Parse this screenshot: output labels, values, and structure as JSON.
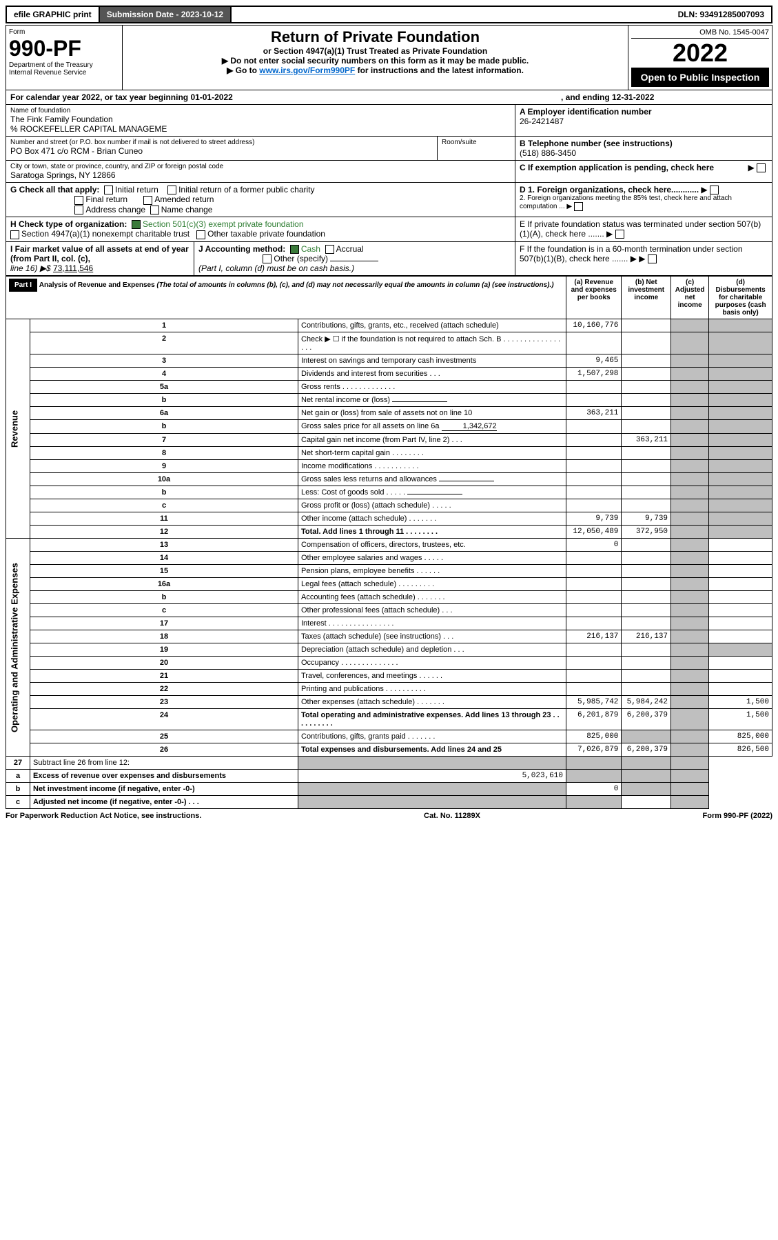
{
  "topbar": {
    "efile": "efile GRAPHIC print",
    "subdate_label": "Submission Date - 2023-10-12",
    "dln": "DLN: 93491285007093"
  },
  "header": {
    "form_word": "Form",
    "form_no": "990-PF",
    "dept": "Department of the Treasury",
    "irs": "Internal Revenue Service",
    "title": "Return of Private Foundation",
    "subtitle": "or Section 4947(a)(1) Trust Treated as Private Foundation",
    "warn1": "▶ Do not enter social security numbers on this form as it may be made public.",
    "warn2_pre": "▶ Go to ",
    "warn2_link": "www.irs.gov/Form990PF",
    "warn2_post": " for instructions and the latest information.",
    "omb": "OMB No. 1545-0047",
    "year": "2022",
    "open": "Open to Public Inspection"
  },
  "cal": {
    "line": "For calendar year 2022, or tax year beginning 01-01-2022",
    "ending": ", and ending 12-31-2022"
  },
  "ident": {
    "name_label": "Name of foundation",
    "name": "The Fink Family Foundation",
    "care": "% ROCKEFELLER CAPITAL MANAGEME",
    "addr_label": "Number and street (or P.O. box number if mail is not delivered to street address)",
    "addr": "PO Box 471 c/o RCM - Brian Cuneo",
    "room_label": "Room/suite",
    "city_label": "City or town, state or province, country, and ZIP or foreign postal code",
    "city": "Saratoga Springs, NY  12866",
    "ein_label": "A Employer identification number",
    "ein": "26-2421487",
    "phone_label": "B Telephone number (see instructions)",
    "phone": "(518) 886-3450",
    "c": "C If exemption application is pending, check here"
  },
  "g": {
    "label": "G Check all that apply:",
    "initial": "Initial return",
    "initial_former": "Initial return of a former public charity",
    "final": "Final return",
    "amended": "Amended return",
    "address": "Address change",
    "namechg": "Name change"
  },
  "h": {
    "label": "H Check type of organization:",
    "sec501": "Section 501(c)(3) exempt private foundation",
    "sec4947": "Section 4947(a)(1) nonexempt charitable trust",
    "other": "Other taxable private foundation"
  },
  "d": {
    "d1": "D 1. Foreign organizations, check here............",
    "d2": "2. Foreign organizations meeting the 85% test, check here and attach computation ...  ▶"
  },
  "e": "E  If private foundation status was terminated under section 507(b)(1)(A), check here .......  ▶",
  "f": "F  If the foundation is in a 60-month termination under section 507(b)(1)(B), check here .......  ▶",
  "i": {
    "label": "I Fair market value of all assets at end of year (from Part II, col. (c),",
    "line16": "line 16) ▶$ ",
    "fmv": "73,111,546"
  },
  "j": {
    "label": "J Accounting method:",
    "cash": "Cash",
    "accrual": "Accrual",
    "other": "Other (specify)",
    "note": "(Part I, column (d) must be on cash basis.)"
  },
  "part1": {
    "label": "Part I",
    "title": "Analysis of Revenue and Expenses",
    "sub": " (The total of amounts in columns (b), (c), and (d) may not necessarily equal the amounts in column (a) (see instructions).)",
    "col_a": "(a)  Revenue and expenses per books",
    "col_b": "(b)  Net investment income",
    "col_c": "(c)  Adjusted net income",
    "col_d": "(d)  Disbursements for charitable purposes (cash basis only)"
  },
  "revenue_label": "Revenue",
  "opex_label": "Operating and Administrative Expenses",
  "rows": [
    {
      "n": "1",
      "d": "Contributions, gifts, grants, etc., received (attach schedule)",
      "a": "10,160,776"
    },
    {
      "n": "2",
      "d": "Check ▶ ☐ if the foundation is not required to attach Sch. B   .  .  .  .  .  .  .  .  .  .  .  .  .  .  .  .  ."
    },
    {
      "n": "3",
      "d": "Interest on savings and temporary cash investments",
      "a": "9,465"
    },
    {
      "n": "4",
      "d": "Dividends and interest from securities    .   .   .",
      "a": "1,507,298"
    },
    {
      "n": "5a",
      "d": "Gross rents     .   .   .   .   .   .   .   .   .   .   .   .   ."
    },
    {
      "n": "b",
      "d": "Net rental income or (loss)",
      "inline": ""
    },
    {
      "n": "6a",
      "d": "Net gain or (loss) from sale of assets not on line 10",
      "a": "363,211"
    },
    {
      "n": "b",
      "d": "Gross sales price for all assets on line 6a",
      "inline": "1,342,672"
    },
    {
      "n": "7",
      "d": "Capital gain net income (from Part IV, line 2)   .   .   .",
      "b": "363,211"
    },
    {
      "n": "8",
      "d": "Net short-term capital gain   .   .   .   .   .   .   .   ."
    },
    {
      "n": "9",
      "d": "Income modifications  .   .   .   .   .   .   .   .   .   .   ."
    },
    {
      "n": "10a",
      "d": "Gross sales less returns and allowances",
      "inline": ""
    },
    {
      "n": "b",
      "d": "Less: Cost of goods sold    .   .   .   .   .",
      "inline": ""
    },
    {
      "n": "c",
      "d": "Gross profit or (loss) (attach schedule)   .   .   .   .   ."
    },
    {
      "n": "11",
      "d": "Other income (attach schedule)   .   .   .   .   .   .   .",
      "a": "9,739",
      "b": "9,739"
    },
    {
      "n": "12",
      "d": "Total. Add lines 1 through 11   .   .   .   .   .   .   .   .",
      "a": "12,050,489",
      "b": "372,950",
      "bold": true
    }
  ],
  "exprows": [
    {
      "n": "13",
      "d": "Compensation of officers, directors, trustees, etc.",
      "a": "0"
    },
    {
      "n": "14",
      "d": "Other employee salaries and wages   .   .   .   .   ."
    },
    {
      "n": "15",
      "d": "Pension plans, employee benefits  .   .   .   .   .   ."
    },
    {
      "n": "16a",
      "d": "Legal fees (attach schedule)  .   .   .   .   .   .   .   .   ."
    },
    {
      "n": "b",
      "d": "Accounting fees (attach schedule) .   .   .   .   .   .   ."
    },
    {
      "n": "c",
      "d": "Other professional fees (attach schedule)    .   .   ."
    },
    {
      "n": "17",
      "d": "Interest  .   .   .   .   .   .   .   .   .   .   .   .   .   .   .   ."
    },
    {
      "n": "18",
      "d": "Taxes (attach schedule) (see instructions)     .   .   .",
      "a": "216,137",
      "b": "216,137"
    },
    {
      "n": "19",
      "d": "Depreciation (attach schedule) and depletion   .   .   .",
      "dgrey": true
    },
    {
      "n": "20",
      "d": "Occupancy  .   .   .   .   .   .   .   .   .   .   .   .   .   ."
    },
    {
      "n": "21",
      "d": "Travel, conferences, and meetings  .   .   .   .   .   ."
    },
    {
      "n": "22",
      "d": "Printing and publications  .   .   .   .   .   .   .   .   .   ."
    },
    {
      "n": "23",
      "d": "Other expenses (attach schedule) .   .   .   .   .   .   .",
      "a": "5,985,742",
      "b": "5,984,242",
      "dd": "1,500"
    },
    {
      "n": "24",
      "d": "Total operating and administrative expenses. Add lines 13 through 23   .   .   .   .   .   .   .   .   .   .",
      "a": "6,201,879",
      "b": "6,200,379",
      "dd": "1,500",
      "bold": true
    },
    {
      "n": "25",
      "d": "Contributions, gifts, grants paid    .   .   .   .   .   .   .",
      "a": "825,000",
      "bgrey": true,
      "dd": "825,000"
    },
    {
      "n": "26",
      "d": "Total expenses and disbursements. Add lines 24 and 25",
      "a": "7,026,879",
      "b": "6,200,379",
      "dd": "826,500",
      "bold": true
    }
  ],
  "bottomrows": [
    {
      "n": "27",
      "d": "Subtract line 26 from line 12:",
      "allgrey": true
    },
    {
      "n": "a",
      "d": "Excess of revenue over expenses and disbursements",
      "a": "5,023,610",
      "bcgrey": true,
      "bold": true
    },
    {
      "n": "b",
      "d": "Net investment income (if negative, enter -0-)",
      "b": "0",
      "acgrey": true,
      "bold": true
    },
    {
      "n": "c",
      "d": "Adjusted net income (if negative, enter -0-)   .   .   .",
      "abgrey": true,
      "bold": true
    }
  ],
  "foot": {
    "pra": "For Paperwork Reduction Act Notice, see instructions.",
    "cat": "Cat. No. 11289X",
    "form": "Form 990-PF (2022)"
  }
}
